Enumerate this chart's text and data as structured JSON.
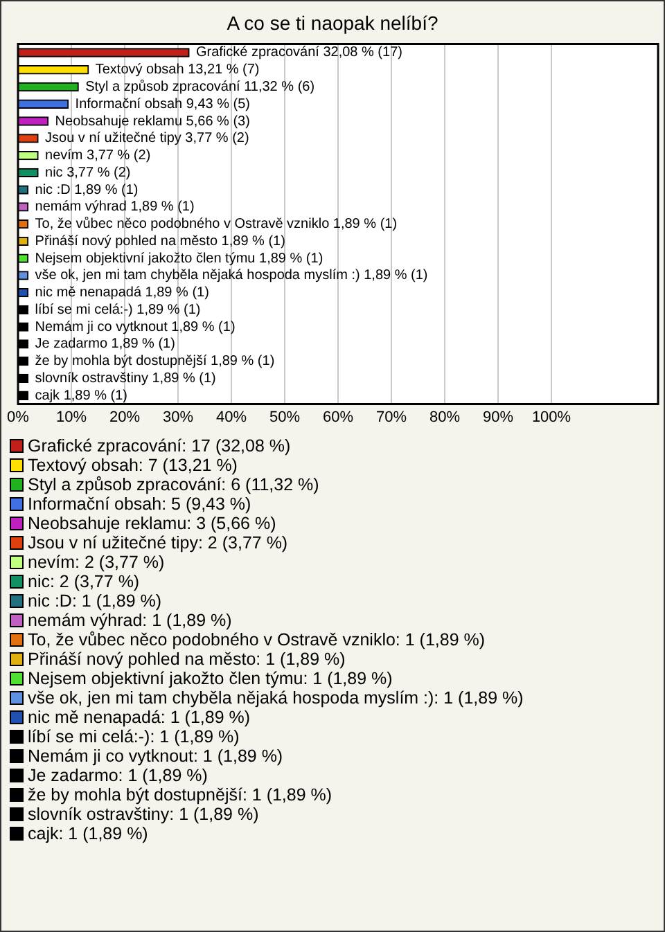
{
  "chart_data": {
    "type": "bar",
    "orientation": "horizontal",
    "title": "A co se ti naopak nelíbí?",
    "categories": [
      "Grafické zpracování",
      "Textový obsah",
      "Styl a způsob zpracování",
      "Informační obsah",
      "Neobsahuje reklamu",
      "Jsou v ní užitečné tipy",
      "nevím",
      "nic",
      "nic :D",
      "nemám výhrad",
      "To, že vůbec něco podobného v Ostravě vzniklo",
      "Přináší nový pohled na město",
      "Nejsem objektivní jakožto člen týmu",
      "vše ok, jen mi tam chyběla nějaká hospoda myslím :)",
      "nic mě nenapadá",
      "líbí se mi celá:-)",
      "Nemám ji co vytknout",
      "Je zadarmo",
      "že by mohla být dostupnější",
      "slovník ostravštiny",
      "cajk"
    ],
    "values": [
      32.08,
      13.21,
      11.32,
      9.43,
      5.66,
      3.77,
      3.77,
      3.77,
      1.89,
      1.89,
      1.89,
      1.89,
      1.89,
      1.89,
      1.89,
      1.89,
      1.89,
      1.89,
      1.89,
      1.89,
      1.89
    ],
    "value_labels": [
      "32,08 % (17)",
      "13,21 % (7)",
      "11,32 % (6)",
      "9,43 % (5)",
      "5,66 % (3)",
      "3,77 % (2)",
      "3,77 % (2)",
      "3,77 % (2)",
      "1,89 % (1)",
      "1,89 % (1)",
      "1,89 % (1)",
      "1,89 % (1)",
      "1,89 % (1)",
      "1,89 % (1)",
      "1,89 % (1)",
      "1,89 % (1)",
      "1,89 % (1)",
      "1,89 % (1)",
      "1,89 % (1)",
      "1,89 % (1)",
      "1,89 % (1)"
    ],
    "colors": [
      "#c0201a",
      "#ffe000",
      "#20b020",
      "#4070e0",
      "#c020c0",
      "#e04010",
      "#c0ff80",
      "#109060",
      "#207080",
      "#c060c0",
      "#e07010",
      "#e0b010",
      "#50e030",
      "#6090e0",
      "#2050b0",
      "#000000",
      "#000000",
      "#000000",
      "#000000",
      "#000000",
      "#000000"
    ],
    "xlim": [
      0,
      120
    ],
    "xticks": [
      {
        "value": 0,
        "label": "0%"
      },
      {
        "value": 10,
        "label": "10%"
      },
      {
        "value": 20,
        "label": "20%"
      },
      {
        "value": 30,
        "label": "30%"
      },
      {
        "value": 40,
        "label": "40%"
      },
      {
        "value": 50,
        "label": "50%"
      },
      {
        "value": 60,
        "label": "60%"
      },
      {
        "value": 70,
        "label": "70%"
      },
      {
        "value": 80,
        "label": "80%"
      },
      {
        "value": 90,
        "label": "90%"
      },
      {
        "value": 100,
        "label": "100%"
      }
    ],
    "grid": "x",
    "tick_labels": "x",
    "annotations": [
      "Grafické zpracování: 17 (32,08 %)",
      "Textový obsah: 7 (13,21 %)",
      "Styl a způsob zpracování: 6 (11,32 %)",
      "Informační obsah: 5 (9,43 %)",
      "Neobsahuje reklamu: 3 (5,66 %)",
      "Jsou v ní užitečné tipy: 2 (3,77 %)",
      "nevím: 2 (3,77 %)",
      "nic: 2 (3,77 %)",
      "nic :D: 1 (1,89 %)",
      "nemám výhrad: 1 (1,89 %)",
      "To, že vůbec něco podobného v Ostravě vzniklo: 1 (1,89 %)",
      "Přináší nový pohled na město: 1 (1,89 %)",
      "Nejsem objektivní jakožto člen týmu: 1 (1,89 %)",
      "vše ok, jen mi tam chyběla nějaká hospoda myslím :): 1 (1,89 %)",
      "nic mě nenapadá: 1 (1,89 %)",
      "líbí se mi celá:-): 1 (1,89 %)",
      "Nemám ji co vytknout: 1 (1,89 %)",
      "Je zadarmo: 1 (1,89 %)",
      "že by mohla být dostupnější: 1 (1,89 %)",
      "slovník ostravštiny: 1 (1,89 %)",
      "cajk: 1 (1,89 %)"
    ]
  }
}
